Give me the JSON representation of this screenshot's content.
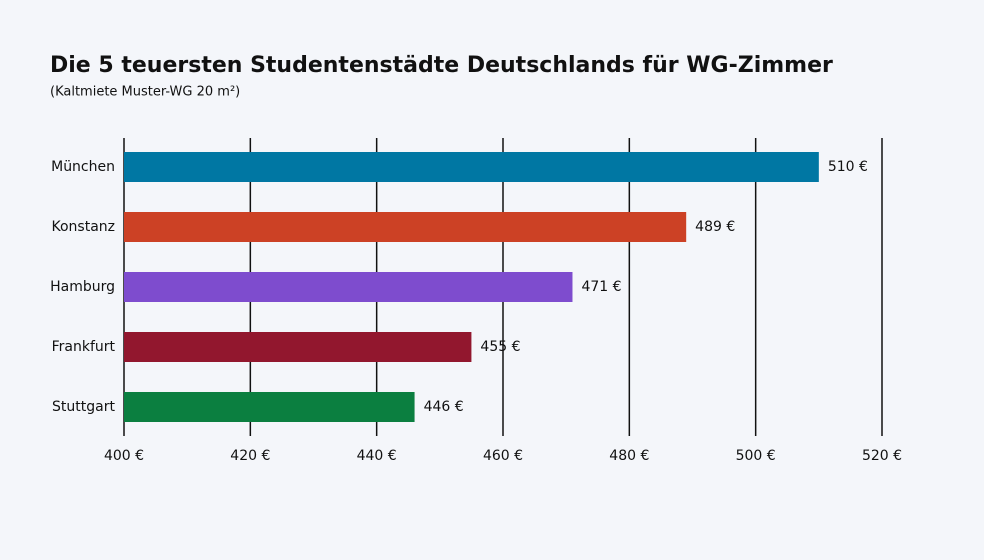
{
  "chart_data": {
    "type": "hbar",
    "title": "Die 5 teuersten Studentenstädte Deutschlands für WG-Zimmer",
    "subtitle": "(Kaltmiete Muster-WG 20 m²)",
    "categories": [
      "München",
      "Konstanz",
      "Hamburg",
      "Frankfurt",
      "Stuttgart"
    ],
    "values": [
      510,
      489,
      471,
      455,
      446
    ],
    "value_labels": [
      "510 €",
      "489 €",
      "471 €",
      "455 €",
      "446 €"
    ],
    "colors": [
      "#0077a3",
      "#cc4125",
      "#7e4cce",
      "#92172e",
      "#0b7f40"
    ],
    "xlim": [
      400,
      520
    ],
    "xticks": [
      {
        "value": 400,
        "label": "400 €"
      },
      {
        "value": 420,
        "label": "420 €"
      },
      {
        "value": 440,
        "label": "440 €"
      },
      {
        "value": 460,
        "label": "460 €"
      },
      {
        "value": 480,
        "label": "480 €"
      },
      {
        "value": 500,
        "label": "500 €"
      },
      {
        "value": 520,
        "label": "520 €"
      }
    ],
    "grid": true
  }
}
